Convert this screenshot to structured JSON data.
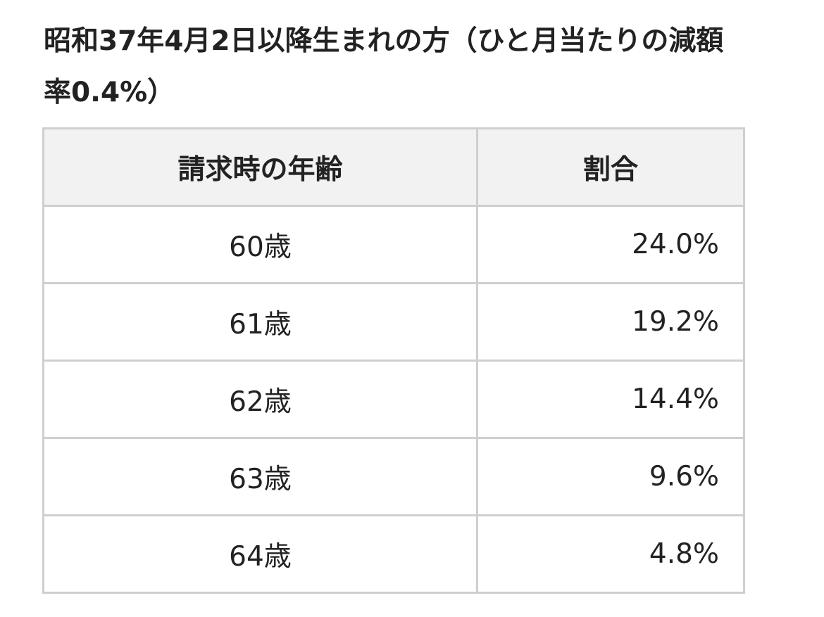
{
  "heading": "昭和37年4月2日以降生まれの方（ひと月当たりの減額率0.4%）",
  "table": {
    "header": [
      "請求時の年齢",
      "割合"
    ],
    "rows": [
      [
        "60歳",
        "24.0%"
      ],
      [
        "61歳",
        "19.2%"
      ],
      [
        "62歳",
        "14.4%"
      ],
      [
        "63歳",
        "9.6%"
      ],
      [
        "64歳",
        "4.8%"
      ]
    ]
  }
}
